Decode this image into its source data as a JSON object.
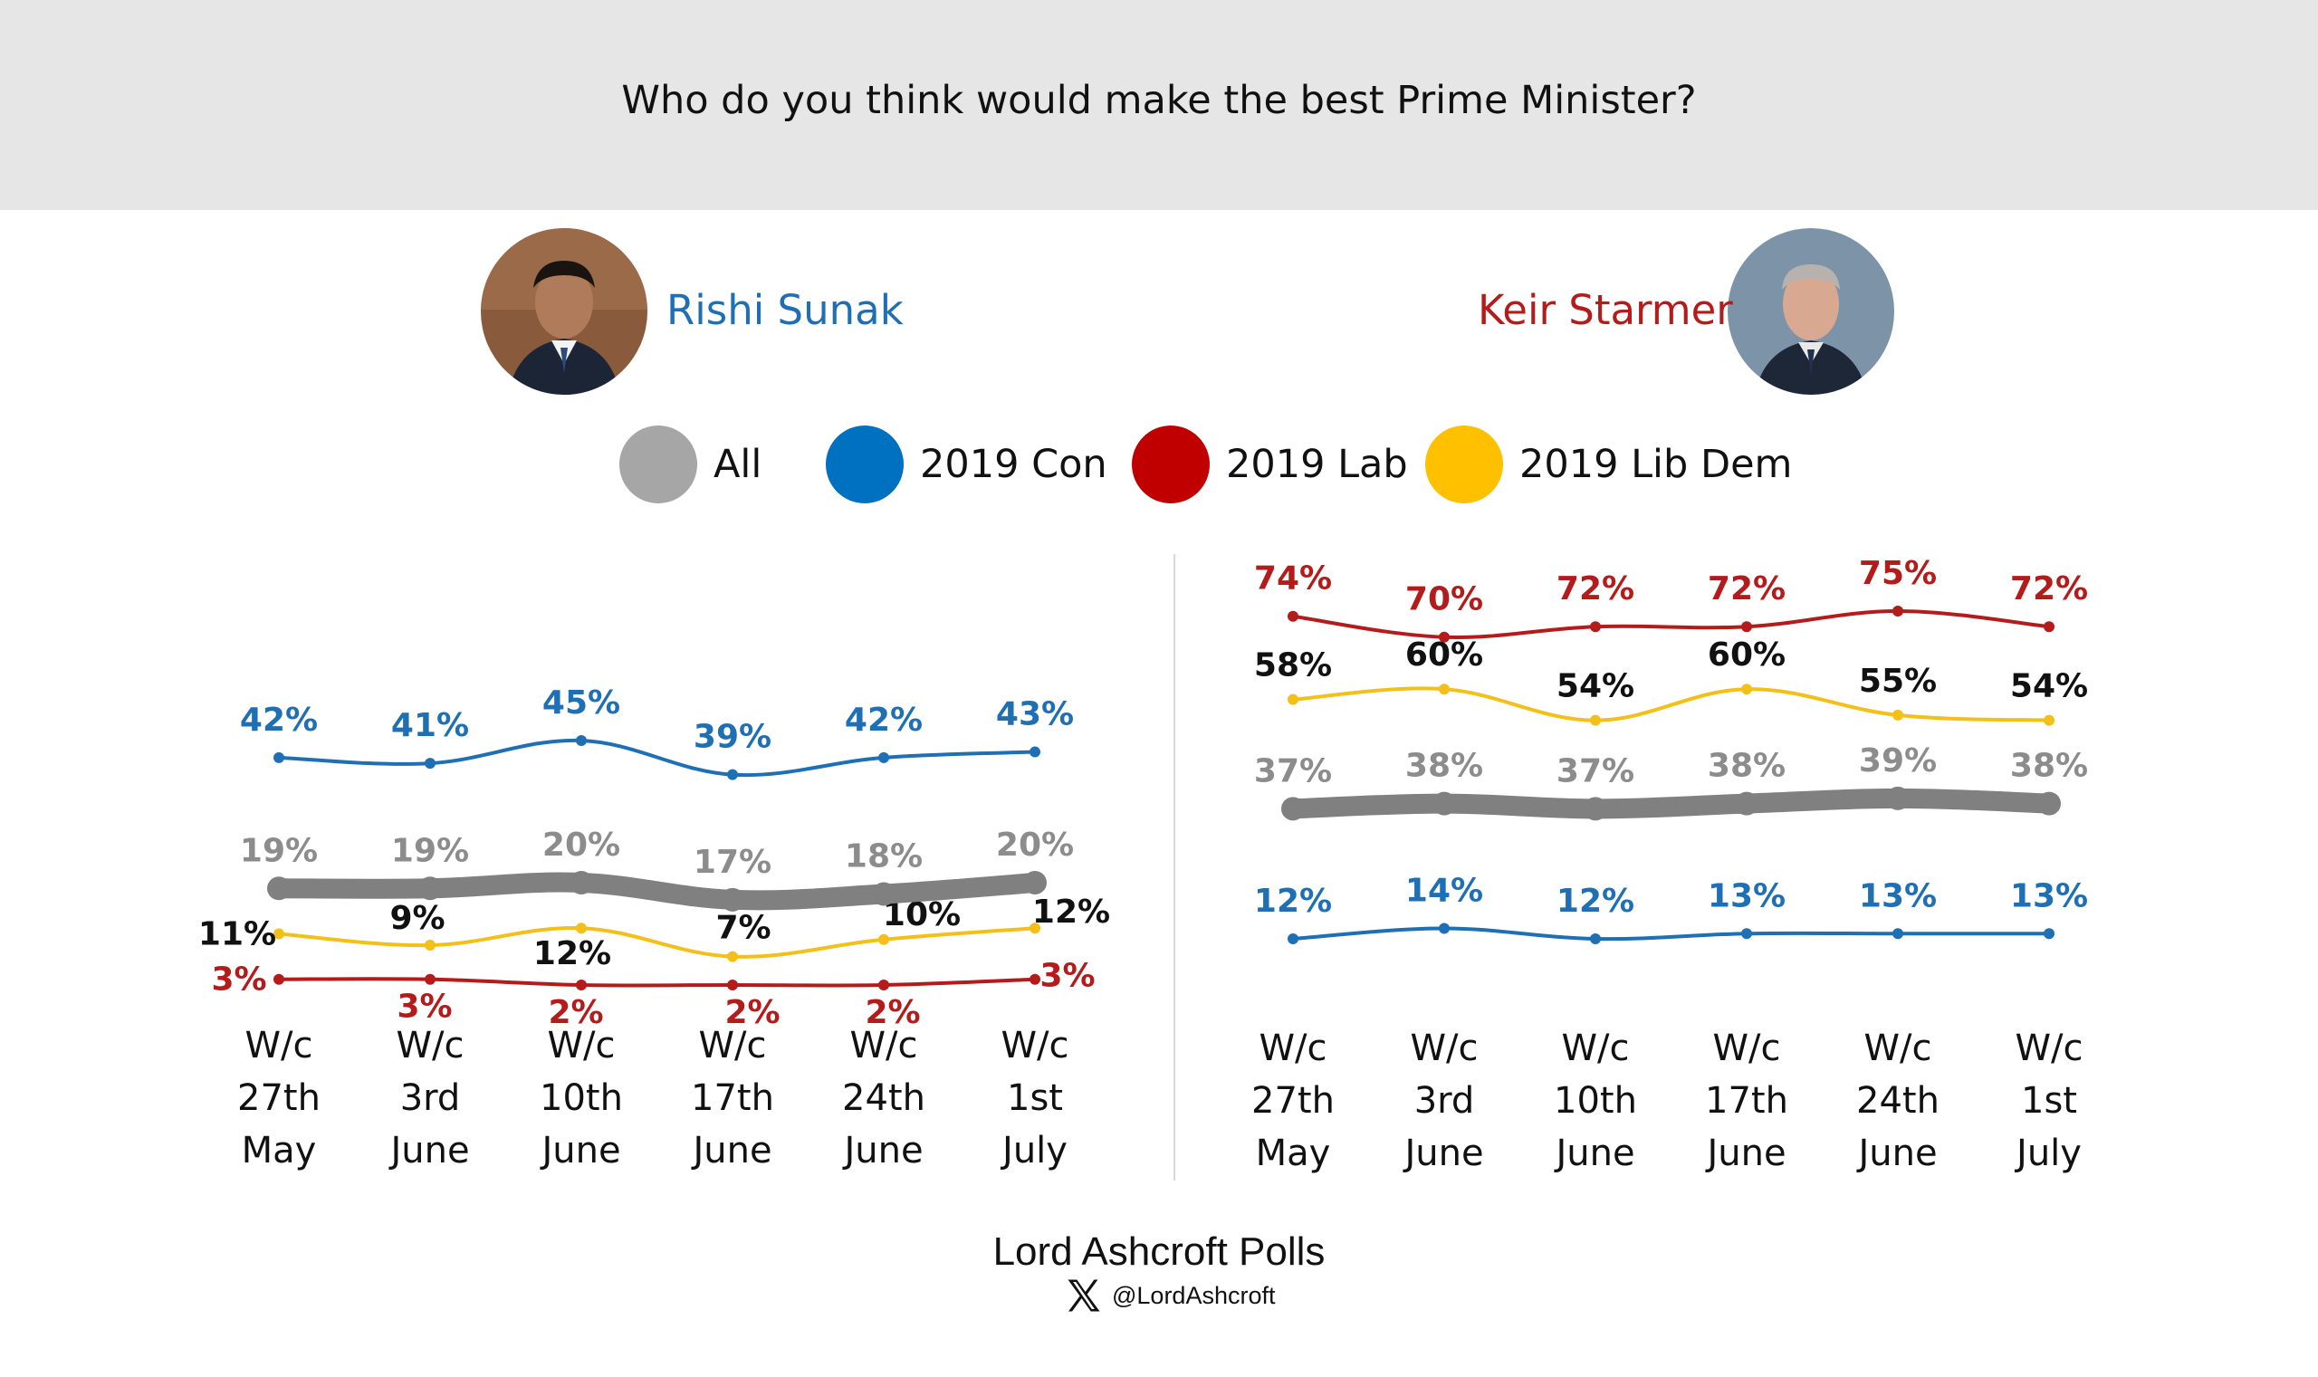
{
  "title": "Who do you think would make the best Prime Minister?",
  "candidates": [
    {
      "name": "Rishi Sunak",
      "color": "#1f6fb5"
    },
    {
      "name": "Keir Starmer",
      "color": "#b41c1c"
    }
  ],
  "legend": [
    {
      "label": "All",
      "color": "#a6a6a6"
    },
    {
      "label": "2019 Con",
      "color": "#0070c0"
    },
    {
      "label": "2019 Lab",
      "color": "#c00000"
    },
    {
      "label": "2019 Lib Dem",
      "color": "#ffc000"
    }
  ],
  "chart_data": [
    {
      "type": "line",
      "title": "Rishi Sunak",
      "categories": [
        "W/c 27th May",
        "W/c 3rd June",
        "W/c 10th June",
        "W/c 17th June",
        "W/c 24th June",
        "W/c 1st July"
      ],
      "category_lines": [
        [
          "W/c",
          "27th",
          "May"
        ],
        [
          "W/c",
          "3rd",
          "June"
        ],
        [
          "W/c",
          "10th",
          "June"
        ],
        [
          "W/c",
          "17th",
          "June"
        ],
        [
          "W/c",
          "24th",
          "June"
        ],
        [
          "W/c",
          "1st",
          "July"
        ]
      ],
      "series": [
        {
          "name": "2019 Con",
          "color": "#1f6fb5",
          "label_color": "#1f6fb5",
          "values": [
            42,
            41,
            45,
            39,
            42,
            43
          ],
          "labels": [
            "42%",
            "41%",
            "45%",
            "39%",
            "42%",
            "43%"
          ]
        },
        {
          "name": "All",
          "color": "#808080",
          "label_color": "#8c8c8c",
          "values": [
            19,
            19,
            20,
            17,
            18,
            20
          ],
          "labels": [
            "19%",
            "19%",
            "20%",
            "17%",
            "18%",
            "20%"
          ]
        },
        {
          "name": "2019 Lib Dem",
          "color": "#f2c018",
          "label_color": "#111111",
          "values": [
            11,
            9,
            12,
            7,
            10,
            12
          ],
          "labels": [
            "11%",
            "9%",
            "12%",
            "7%",
            "10%",
            "12%"
          ]
        },
        {
          "name": "2019 Lab",
          "color": "#b41c1c",
          "label_color": "#b41c1c",
          "values": [
            3,
            3,
            2,
            2,
            2,
            3
          ],
          "labels": [
            "3%",
            "3%",
            "2%",
            "2%",
            "2%",
            "3%"
          ]
        }
      ]
    },
    {
      "type": "line",
      "title": "Keir Starmer",
      "categories": [
        "W/c 27th May",
        "W/c 3rd June",
        "W/c 10th June",
        "W/c 17th June",
        "W/c 24th June",
        "W/c 1st July"
      ],
      "category_lines": [
        [
          "W/c",
          "27th",
          "May"
        ],
        [
          "W/c",
          "3rd",
          "June"
        ],
        [
          "W/c",
          "10th",
          "June"
        ],
        [
          "W/c",
          "17th",
          "June"
        ],
        [
          "W/c",
          "24th",
          "June"
        ],
        [
          "W/c",
          "1st",
          "July"
        ]
      ],
      "series": [
        {
          "name": "2019 Lab",
          "color": "#b41c1c",
          "label_color": "#b41c1c",
          "values": [
            74,
            70,
            72,
            72,
            75,
            72
          ],
          "labels": [
            "74%",
            "70%",
            "72%",
            "72%",
            "75%",
            "72%"
          ]
        },
        {
          "name": "2019 Lib Dem",
          "color": "#f2c018",
          "label_color": "#111111",
          "values": [
            58,
            60,
            54,
            60,
            55,
            54
          ],
          "labels": [
            "58%",
            "60%",
            "54%",
            "60%",
            "55%",
            "54%"
          ]
        },
        {
          "name": "All",
          "color": "#808080",
          "label_color": "#8c8c8c",
          "values": [
            37,
            38,
            37,
            38,
            39,
            38
          ],
          "labels": [
            "37%",
            "38%",
            "37%",
            "38%",
            "39%",
            "38%"
          ]
        },
        {
          "name": "2019 Con",
          "color": "#1f6fb5",
          "label_color": "#1f6fb5",
          "values": [
            12,
            14,
            12,
            13,
            13,
            13
          ],
          "labels": [
            "12%",
            "14%",
            "12%",
            "13%",
            "13%",
            "13%"
          ]
        }
      ]
    }
  ],
  "footer": {
    "source": "Lord Ashcroft Polls",
    "handle": "@LordAshcroft"
  }
}
